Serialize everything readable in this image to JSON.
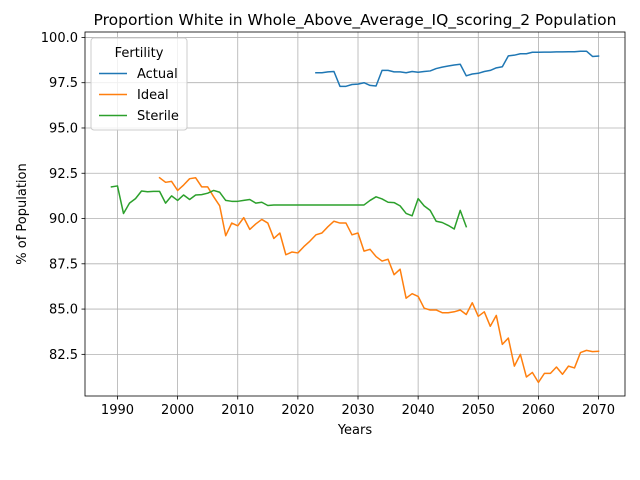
{
  "chart_data": {
    "type": "line",
    "title": "Proportion White in Whole_Above_Average_IQ_scoring_2 Population",
    "xlabel": "Years",
    "ylabel": "% of Population",
    "xlim": [
      1984.6,
      2074.4
    ],
    "ylim": [
      80.2,
      100.3
    ],
    "xticks": [
      1990,
      2000,
      2010,
      2020,
      2030,
      2040,
      2050,
      2060,
      2070
    ],
    "yticks": [
      82.5,
      85.0,
      87.5,
      90.0,
      92.5,
      95.0,
      97.5,
      100.0
    ],
    "ytick_labels": [
      "82.5",
      "85.0",
      "87.5",
      "90.0",
      "92.5",
      "95.0",
      "97.5",
      "100.0"
    ],
    "grid": true,
    "legend": {
      "title": "Fertility",
      "position": "top-left"
    },
    "series": [
      {
        "name": "Actual",
        "color": "#1f77b4",
        "x": [
          2023,
          2024,
          2025,
          2026,
          2027,
          2028,
          2029,
          2030,
          2031,
          2032,
          2033,
          2034,
          2035,
          2036,
          2037,
          2038,
          2039,
          2040,
          2041,
          2042,
          2043,
          2044,
          2045,
          2046,
          2047,
          2048,
          2049,
          2050,
          2051,
          2052,
          2053,
          2054,
          2055,
          2056,
          2057,
          2058,
          2059,
          2060,
          2061,
          2062,
          2063,
          2064,
          2065,
          2066,
          2067,
          2068,
          2069,
          2070
        ],
        "y": [
          98.05,
          98.05,
          98.1,
          98.12,
          97.3,
          97.3,
          97.4,
          97.42,
          97.5,
          97.35,
          97.32,
          98.18,
          98.18,
          98.1,
          98.1,
          98.05,
          98.12,
          98.08,
          98.12,
          98.15,
          98.28,
          98.36,
          98.42,
          98.48,
          98.52,
          97.88,
          97.98,
          98.02,
          98.12,
          98.18,
          98.32,
          98.38,
          98.98,
          99.02,
          99.1,
          99.1,
          99.18,
          99.18,
          99.19,
          99.19,
          99.2,
          99.2,
          99.21,
          99.21,
          99.24,
          99.24,
          98.95,
          98.97
        ]
      },
      {
        "name": "Ideal",
        "color": "#ff7f0e",
        "x": [
          1997,
          1998,
          1999,
          2000,
          2001,
          2002,
          2003,
          2004,
          2005,
          2006,
          2007,
          2008,
          2009,
          2010,
          2011,
          2012,
          2013,
          2014,
          2015,
          2016,
          2017,
          2018,
          2019,
          2020,
          2021,
          2022,
          2023,
          2024,
          2025,
          2026,
          2027,
          2028,
          2029,
          2030,
          2031,
          2032,
          2033,
          2034,
          2035,
          2036,
          2037,
          2038,
          2039,
          2040,
          2041,
          2042,
          2043,
          2044,
          2045,
          2046,
          2047,
          2048,
          2049,
          2050,
          2051,
          2052,
          2053,
          2054,
          2055,
          2056,
          2057,
          2058,
          2059,
          2060,
          2061,
          2062,
          2063,
          2064,
          2065,
          2066,
          2067,
          2068,
          2069,
          2070
        ],
        "y": [
          92.25,
          92.0,
          92.05,
          91.55,
          91.85,
          92.2,
          92.25,
          91.75,
          91.75,
          91.2,
          90.7,
          89.05,
          89.75,
          89.6,
          90.05,
          89.4,
          89.7,
          89.95,
          89.75,
          88.9,
          89.2,
          88.0,
          88.15,
          88.1,
          88.45,
          88.75,
          89.1,
          89.2,
          89.55,
          89.85,
          89.75,
          89.75,
          89.1,
          89.2,
          88.2,
          88.3,
          87.9,
          87.65,
          87.75,
          86.9,
          87.2,
          85.6,
          85.85,
          85.7,
          85.05,
          84.95,
          84.95,
          84.8,
          84.8,
          84.85,
          84.95,
          84.7,
          85.35,
          84.6,
          84.85,
          84.05,
          84.65,
          83.05,
          83.4,
          81.85,
          82.5,
          81.25,
          81.5,
          80.95,
          81.45,
          81.45,
          81.8,
          81.4,
          81.85,
          81.75,
          82.6,
          82.72,
          82.65,
          82.67
        ]
      },
      {
        "name": "Sterile",
        "color": "#2ca02c",
        "x": [
          1989,
          1990,
          1991,
          1992,
          1993,
          1994,
          1995,
          1996,
          1997,
          1998,
          1999,
          2000,
          2001,
          2002,
          2003,
          2004,
          2005,
          2006,
          2007,
          2008,
          2009,
          2010,
          2011,
          2012,
          2013,
          2014,
          2015,
          2016,
          2017,
          2018,
          2019,
          2020,
          2021,
          2022,
          2023,
          2024,
          2025,
          2026,
          2027,
          2028,
          2029,
          2030,
          2031,
          2032,
          2033,
          2034,
          2035,
          2036,
          2037,
          2038,
          2039,
          2040,
          2041,
          2042,
          2043,
          2044,
          2045,
          2046,
          2047,
          2048
        ],
        "y": [
          91.75,
          91.8,
          90.28,
          90.85,
          91.1,
          91.52,
          91.48,
          91.5,
          91.5,
          90.85,
          91.25,
          91.0,
          91.3,
          91.05,
          91.3,
          91.32,
          91.4,
          91.55,
          91.45,
          91.0,
          90.95,
          90.95,
          91.0,
          91.05,
          90.85,
          90.9,
          90.72,
          90.75,
          90.75,
          90.75,
          90.75,
          90.75,
          90.75,
          90.75,
          90.75,
          90.75,
          90.75,
          90.75,
          90.75,
          90.75,
          90.75,
          90.75,
          90.75,
          91.0,
          91.2,
          91.08,
          90.9,
          90.88,
          90.7,
          90.28,
          90.15,
          91.1,
          90.7,
          90.45,
          89.85,
          89.78,
          89.62,
          89.42,
          90.45,
          89.55
        ]
      }
    ]
  }
}
